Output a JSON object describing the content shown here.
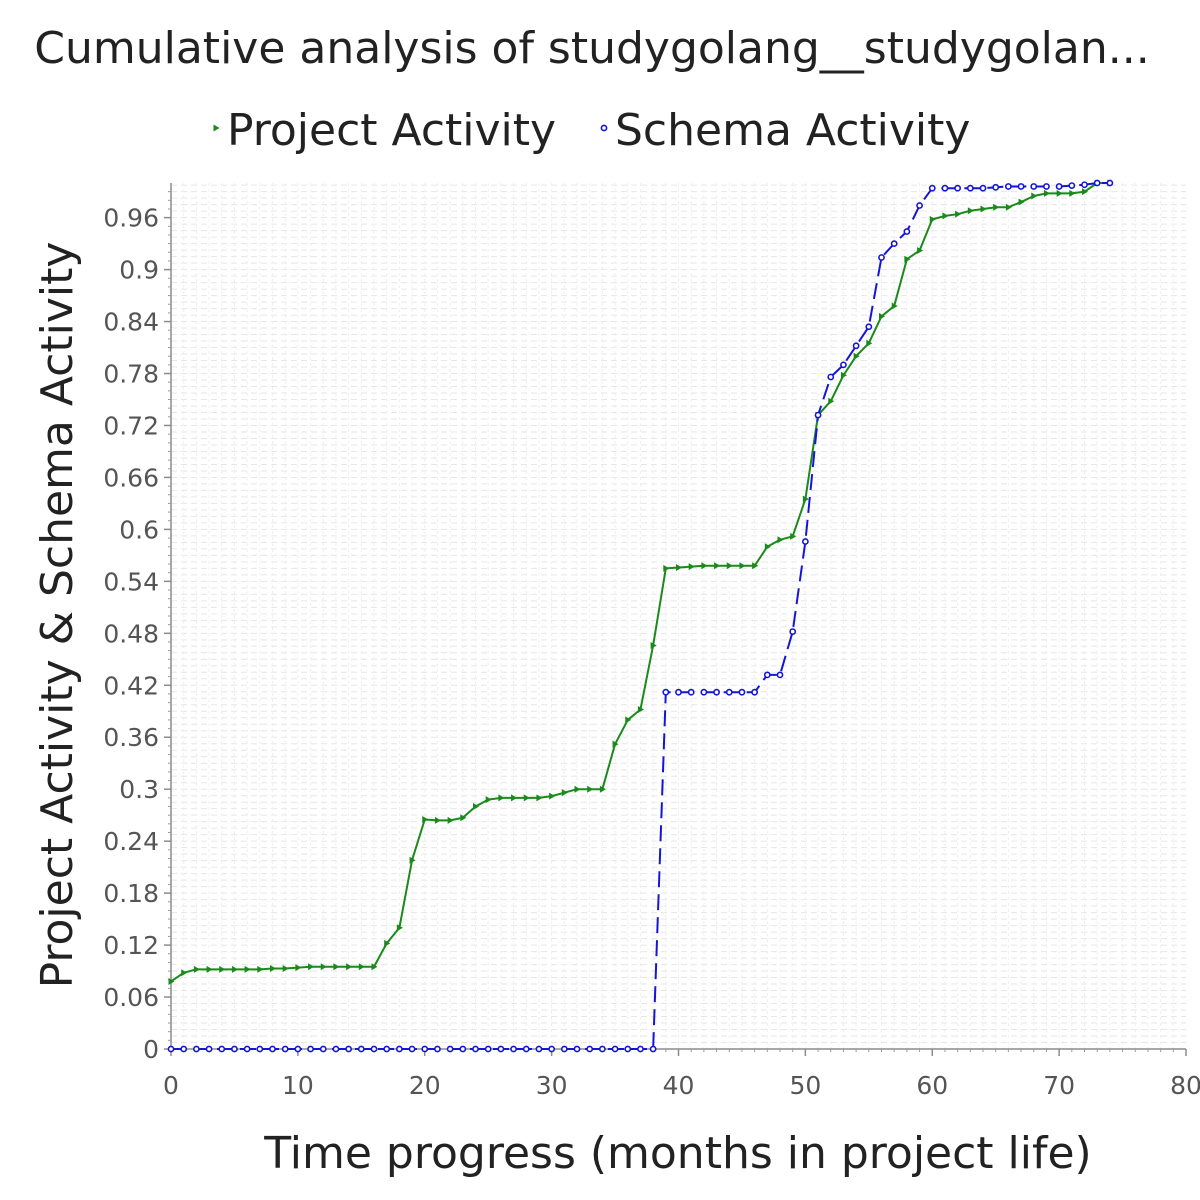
{
  "chart_data": {
    "type": "line",
    "title": "Cumulative analysis of studygolang__studygolan...",
    "xlabel": "Time progress (months in project life)",
    "ylabel": "Project Activity & Schema Activity",
    "xlim": [
      0,
      80
    ],
    "ylim": [
      0,
      1.0
    ],
    "x_ticks": [
      "0",
      "10",
      "20",
      "30",
      "40",
      "50",
      "60",
      "70",
      "80"
    ],
    "y_ticks": [
      "0",
      "0.06",
      "0.12",
      "0.18",
      "0.24",
      "0.3",
      "0.36",
      "0.42",
      "0.48",
      "0.54",
      "0.6",
      "0.66",
      "0.72",
      "0.78",
      "0.84",
      "0.9",
      "0.96"
    ],
    "grid": true,
    "legend_position": "top",
    "series": [
      {
        "name": "Project Activity",
        "color": "#1a8a1a",
        "marker": "triangle-right",
        "dash": "solid",
        "points": [
          [
            0,
            0.078
          ],
          [
            1,
            0.088
          ],
          [
            2,
            0.092
          ],
          [
            3,
            0.092
          ],
          [
            4,
            0.092
          ],
          [
            5,
            0.092
          ],
          [
            6,
            0.092
          ],
          [
            7,
            0.092
          ],
          [
            8,
            0.093
          ],
          [
            9,
            0.093
          ],
          [
            10,
            0.094
          ],
          [
            11,
            0.095
          ],
          [
            12,
            0.095
          ],
          [
            13,
            0.095
          ],
          [
            14,
            0.095
          ],
          [
            15,
            0.095
          ],
          [
            16,
            0.095
          ],
          [
            17,
            0.122
          ],
          [
            18,
            0.14
          ],
          [
            19,
            0.218
          ],
          [
            20,
            0.265
          ],
          [
            21,
            0.264
          ],
          [
            22,
            0.264
          ],
          [
            23,
            0.267
          ],
          [
            24,
            0.28
          ],
          [
            25,
            0.288
          ],
          [
            26,
            0.29
          ],
          [
            27,
            0.29
          ],
          [
            28,
            0.29
          ],
          [
            29,
            0.29
          ],
          [
            30,
            0.292
          ],
          [
            31,
            0.296
          ],
          [
            32,
            0.3
          ],
          [
            33,
            0.3
          ],
          [
            34,
            0.3
          ],
          [
            35,
            0.352
          ],
          [
            36,
            0.38
          ],
          [
            37,
            0.392
          ],
          [
            38,
            0.466
          ],
          [
            39,
            0.555
          ],
          [
            40,
            0.556
          ],
          [
            41,
            0.557
          ],
          [
            42,
            0.558
          ],
          [
            43,
            0.558
          ],
          [
            44,
            0.558
          ],
          [
            45,
            0.558
          ],
          [
            46,
            0.558
          ],
          [
            47,
            0.58
          ],
          [
            48,
            0.588
          ],
          [
            49,
            0.592
          ],
          [
            50,
            0.635
          ],
          [
            51,
            0.732
          ],
          [
            52,
            0.748
          ],
          [
            53,
            0.778
          ],
          [
            54,
            0.8
          ],
          [
            55,
            0.815
          ],
          [
            56,
            0.846
          ],
          [
            57,
            0.858
          ],
          [
            58,
            0.912
          ],
          [
            59,
            0.922
          ],
          [
            60,
            0.958
          ],
          [
            61,
            0.962
          ],
          [
            62,
            0.964
          ],
          [
            63,
            0.968
          ],
          [
            64,
            0.97
          ],
          [
            65,
            0.972
          ],
          [
            66,
            0.972
          ],
          [
            67,
            0.978
          ],
          [
            68,
            0.985
          ],
          [
            69,
            0.988
          ],
          [
            70,
            0.988
          ],
          [
            71,
            0.988
          ],
          [
            72,
            0.99
          ],
          [
            73,
            1.0
          ],
          [
            74,
            1.0
          ]
        ]
      },
      {
        "name": "Schema Activity",
        "color": "#1515d8",
        "marker": "circle",
        "dash": "dashed",
        "points": [
          [
            0,
            0
          ],
          [
            1,
            0
          ],
          [
            2,
            0
          ],
          [
            3,
            0
          ],
          [
            4,
            0
          ],
          [
            5,
            0
          ],
          [
            6,
            0
          ],
          [
            7,
            0
          ],
          [
            8,
            0
          ],
          [
            9,
            0
          ],
          [
            10,
            0
          ],
          [
            11,
            0
          ],
          [
            12,
            0
          ],
          [
            13,
            0
          ],
          [
            14,
            0
          ],
          [
            15,
            0
          ],
          [
            16,
            0
          ],
          [
            17,
            0
          ],
          [
            18,
            0
          ],
          [
            19,
            0
          ],
          [
            20,
            0
          ],
          [
            21,
            0
          ],
          [
            22,
            0
          ],
          [
            23,
            0
          ],
          [
            24,
            0
          ],
          [
            25,
            0
          ],
          [
            26,
            0
          ],
          [
            27,
            0
          ],
          [
            28,
            0
          ],
          [
            29,
            0
          ],
          [
            30,
            0
          ],
          [
            31,
            0
          ],
          [
            32,
            0
          ],
          [
            33,
            0
          ],
          [
            34,
            0
          ],
          [
            35,
            0
          ],
          [
            36,
            0
          ],
          [
            37,
            0
          ],
          [
            38,
            0
          ],
          [
            39,
            0.412
          ],
          [
            40,
            0.412
          ],
          [
            41,
            0.412
          ],
          [
            42,
            0.412
          ],
          [
            43,
            0.412
          ],
          [
            44,
            0.412
          ],
          [
            45,
            0.412
          ],
          [
            46,
            0.412
          ],
          [
            47,
            0.432
          ],
          [
            48,
            0.432
          ],
          [
            49,
            0.482
          ],
          [
            50,
            0.586
          ],
          [
            51,
            0.732
          ],
          [
            52,
            0.776
          ],
          [
            53,
            0.79
          ],
          [
            54,
            0.812
          ],
          [
            55,
            0.834
          ],
          [
            56,
            0.914
          ],
          [
            57,
            0.93
          ],
          [
            58,
            0.944
          ],
          [
            59,
            0.974
          ],
          [
            60,
            0.994
          ],
          [
            61,
            0.994
          ],
          [
            62,
            0.994
          ],
          [
            63,
            0.994
          ],
          [
            64,
            0.994
          ],
          [
            65,
            0.995
          ],
          [
            66,
            0.996
          ],
          [
            67,
            0.996
          ],
          [
            68,
            0.996
          ],
          [
            69,
            0.996
          ],
          [
            70,
            0.996
          ],
          [
            71,
            0.997
          ],
          [
            72,
            0.998
          ],
          [
            73,
            1.0
          ],
          [
            74,
            1.0
          ]
        ]
      }
    ]
  }
}
